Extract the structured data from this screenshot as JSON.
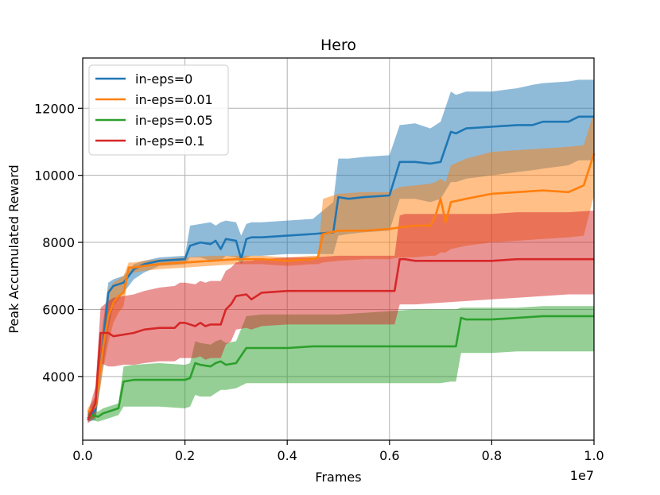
{
  "chart_data": {
    "type": "line",
    "title": "Hero",
    "xlabel": "Frames",
    "ylabel": "Peak Accumulated Reward",
    "x_offset_label": "1e7",
    "xlim": [
      0.0,
      1.0
    ],
    "ylim": [
      2100,
      13500
    ],
    "xticks": [
      0.0,
      0.2,
      0.4,
      0.6,
      0.8,
      1.0
    ],
    "xtick_labels": [
      "0.0",
      "0.2",
      "0.4",
      "0.6",
      "0.8",
      "1.0"
    ],
    "yticks": [
      4000,
      6000,
      8000,
      10000,
      12000
    ],
    "ytick_labels": [
      "4000",
      "6000",
      "8000",
      "10000",
      "12000"
    ],
    "grid": true,
    "legend_position": "top-left",
    "series": [
      {
        "name": "in-eps=0",
        "color": "#1f77b4",
        "x": [
          0.01,
          0.025,
          0.04,
          0.05,
          0.06,
          0.07,
          0.08,
          0.1,
          0.12,
          0.15,
          0.2,
          0.21,
          0.23,
          0.25,
          0.26,
          0.27,
          0.28,
          0.3,
          0.31,
          0.32,
          0.33,
          0.35,
          0.4,
          0.45,
          0.49,
          0.5,
          0.52,
          0.55,
          0.6,
          0.62,
          0.65,
          0.68,
          0.7,
          0.72,
          0.73,
          0.75,
          0.8,
          0.85,
          0.88,
          0.9,
          0.95,
          0.97,
          1.0
        ],
        "y": [
          2750,
          3000,
          5000,
          6500,
          6700,
          6750,
          6800,
          7200,
          7350,
          7450,
          7500,
          7900,
          8000,
          7950,
          8050,
          7800,
          8100,
          8050,
          7500,
          8100,
          8150,
          8150,
          8200,
          8250,
          8300,
          9350,
          9300,
          9350,
          9400,
          10400,
          10400,
          10350,
          10400,
          11300,
          11250,
          11400,
          11450,
          11500,
          11500,
          11600,
          11600,
          11750,
          11750
        ],
        "upper": [
          2900,
          3400,
          5600,
          6800,
          6900,
          6950,
          7000,
          7350,
          7450,
          7550,
          7600,
          8500,
          8550,
          8600,
          8500,
          8600,
          8650,
          8600,
          8200,
          8550,
          8600,
          8600,
          8650,
          8700,
          9200,
          10500,
          10500,
          10550,
          10600,
          11500,
          11550,
          11400,
          11600,
          12500,
          12400,
          12500,
          12500,
          12600,
          12700,
          12750,
          12800,
          12850,
          12850
        ],
        "lower": [
          2650,
          2700,
          4300,
          5400,
          6100,
          6300,
          6500,
          6900,
          7100,
          7300,
          7350,
          7550,
          7550,
          7450,
          7450,
          7450,
          7600,
          7550,
          7350,
          7550,
          7600,
          7600,
          7650,
          7650,
          7650,
          8200,
          8250,
          8300,
          8350,
          9300,
          9300,
          9200,
          9300,
          9800,
          9800,
          9900,
          10000,
          10100,
          10150,
          10200,
          10300,
          10450,
          10450
        ]
      },
      {
        "name": "in-eps=0.01",
        "color": "#ff7f0e",
        "x": [
          0.01,
          0.025,
          0.04,
          0.05,
          0.06,
          0.07,
          0.08,
          0.09,
          0.1,
          0.12,
          0.15,
          0.2,
          0.25,
          0.3,
          0.35,
          0.4,
          0.45,
          0.46,
          0.47,
          0.5,
          0.55,
          0.6,
          0.62,
          0.65,
          0.68,
          0.69,
          0.7,
          0.71,
          0.72,
          0.75,
          0.8,
          0.85,
          0.9,
          0.95,
          0.98,
          1.0
        ],
        "y": [
          2950,
          3100,
          4900,
          5800,
          6200,
          6400,
          6500,
          7250,
          7250,
          7300,
          7350,
          7400,
          7450,
          7500,
          7500,
          7450,
          7500,
          7550,
          8250,
          8350,
          8350,
          8400,
          8450,
          8500,
          8500,
          8800,
          9300,
          8600,
          9200,
          9300,
          9450,
          9500,
          9550,
          9500,
          9700,
          10650
        ],
        "upper": [
          3050,
          3400,
          5600,
          6600,
          6800,
          6900,
          7000,
          7400,
          7400,
          7450,
          7500,
          7550,
          7600,
          7600,
          7600,
          7550,
          7600,
          7600,
          9300,
          9450,
          9500,
          9500,
          9650,
          9700,
          9750,
          9800,
          9900,
          9800,
          10300,
          10500,
          10700,
          10750,
          10800,
          10850,
          10900,
          11900
        ],
        "lower": [
          2750,
          2750,
          4200,
          5000,
          5600,
          5900,
          6100,
          7050,
          7100,
          7150,
          7200,
          7250,
          7300,
          7350,
          7350,
          7300,
          7350,
          7350,
          7400,
          7450,
          7500,
          7500,
          7550,
          7550,
          7600,
          7600,
          7700,
          7700,
          7800,
          7900,
          8000,
          8050,
          8100,
          8150,
          8200,
          9400
        ]
      },
      {
        "name": "in-eps=0.05",
        "color": "#2ca02c",
        "x": [
          0.01,
          0.02,
          0.03,
          0.04,
          0.05,
          0.06,
          0.07,
          0.08,
          0.1,
          0.15,
          0.2,
          0.21,
          0.22,
          0.23,
          0.25,
          0.26,
          0.27,
          0.28,
          0.3,
          0.32,
          0.35,
          0.4,
          0.45,
          0.5,
          0.55,
          0.6,
          0.65,
          0.7,
          0.72,
          0.73,
          0.74,
          0.75,
          0.8,
          0.85,
          0.9,
          0.95,
          1.0
        ],
        "y": [
          2750,
          2850,
          2800,
          2900,
          2950,
          3000,
          3050,
          3850,
          3900,
          3900,
          3900,
          3950,
          4400,
          4350,
          4300,
          4400,
          4450,
          4350,
          4400,
          4850,
          4850,
          4850,
          4900,
          4900,
          4900,
          4900,
          4900,
          4900,
          4900,
          4900,
          5750,
          5700,
          5700,
          5750,
          5800,
          5800,
          5800
        ],
        "upper": [
          2900,
          3000,
          2950,
          3050,
          3100,
          3150,
          3200,
          4300,
          4350,
          4400,
          4350,
          4400,
          5050,
          5000,
          4950,
          5050,
          5100,
          5000,
          5050,
          5800,
          5850,
          5850,
          5850,
          5850,
          5900,
          5950,
          6000,
          6000,
          6000,
          6000,
          6050,
          6050,
          6050,
          6050,
          6100,
          6100,
          6100
        ],
        "lower": [
          2700,
          2700,
          2650,
          2700,
          2750,
          2800,
          2850,
          3100,
          3100,
          3100,
          3050,
          3100,
          3450,
          3400,
          3400,
          3500,
          3600,
          3600,
          3650,
          3800,
          3800,
          3800,
          3800,
          3800,
          3800,
          3800,
          3800,
          3800,
          3850,
          3850,
          4700,
          4700,
          4700,
          4750,
          4750,
          4750,
          4750
        ]
      },
      {
        "name": "in-eps=0.1",
        "color": "#d62728",
        "x": [
          0.01,
          0.025,
          0.035,
          0.05,
          0.06,
          0.08,
          0.1,
          0.12,
          0.15,
          0.18,
          0.19,
          0.2,
          0.22,
          0.23,
          0.24,
          0.25,
          0.27,
          0.28,
          0.29,
          0.3,
          0.32,
          0.33,
          0.35,
          0.4,
          0.45,
          0.5,
          0.55,
          0.6,
          0.61,
          0.62,
          0.63,
          0.65,
          0.7,
          0.75,
          0.8,
          0.85,
          0.9,
          0.95,
          1.0
        ],
        "y": [
          2700,
          3200,
          5300,
          5300,
          5200,
          5250,
          5300,
          5400,
          5450,
          5450,
          5600,
          5600,
          5500,
          5600,
          5500,
          5550,
          5550,
          6000,
          6150,
          6400,
          6450,
          6300,
          6500,
          6550,
          6550,
          6550,
          6550,
          6550,
          6550,
          7500,
          7500,
          7450,
          7450,
          7450,
          7450,
          7500,
          7500,
          7500,
          7500
        ],
        "upper": [
          2900,
          3700,
          6050,
          6250,
          6350,
          6400,
          6450,
          6550,
          6650,
          6700,
          6800,
          6800,
          6750,
          6850,
          6800,
          6850,
          6850,
          7150,
          7250,
          7400,
          7450,
          7450,
          7500,
          7550,
          7550,
          7600,
          7600,
          7600,
          7600,
          8800,
          8850,
          8850,
          8850,
          8850,
          8850,
          8900,
          8900,
          8900,
          8950
        ],
        "lower": [
          2600,
          2800,
          4400,
          4300,
          4300,
          4350,
          4350,
          4400,
          4450,
          4450,
          4550,
          4550,
          4550,
          4600,
          4500,
          4550,
          4550,
          4950,
          5050,
          5400,
          5450,
          5400,
          5500,
          5550,
          5550,
          5550,
          5550,
          5550,
          5550,
          6150,
          6150,
          6150,
          6200,
          6250,
          6300,
          6350,
          6400,
          6450,
          6450
        ]
      }
    ]
  }
}
